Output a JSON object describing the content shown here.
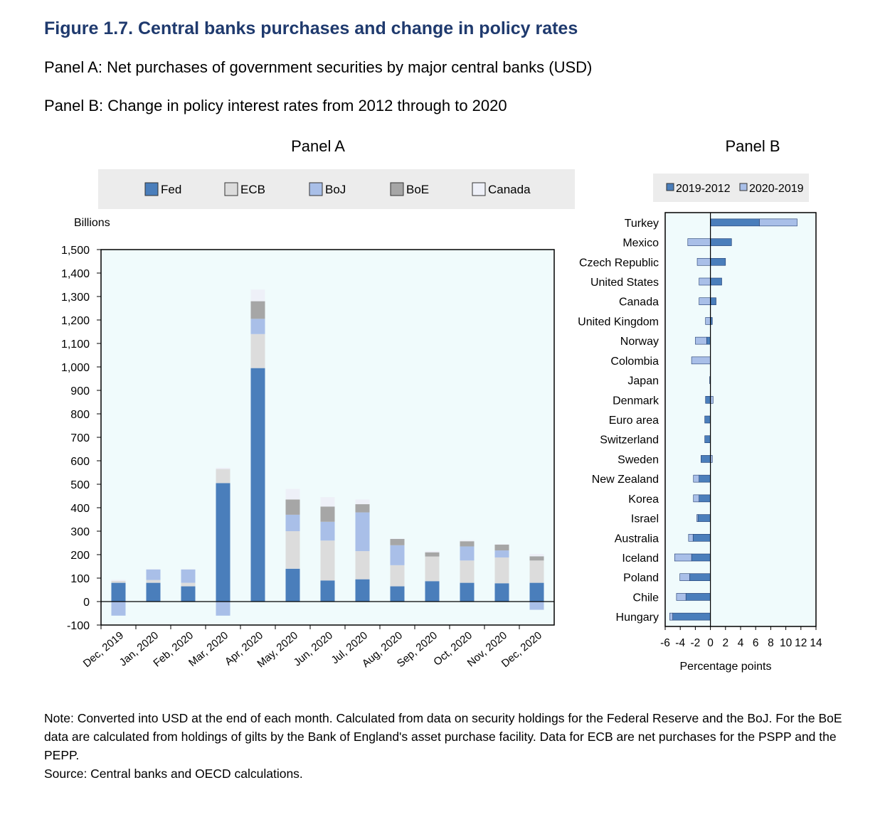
{
  "title": "Figure 1.7. Central banks purchases and change in policy rates",
  "subtitle_a": "Panel A: Net purchases of government securities by major central banks (USD)",
  "subtitle_b": "Panel B: Change in policy interest rates from 2012 through to 2020",
  "note": "Note: Converted into USD at the end of each month. Calculated from data on security holdings for the Federal Reserve and the BoJ. For the BoE data are calculated from holdings of gilts by the Bank of England's asset purchase facility. Data for ECB are net purchases for the PSPP and the PEPP.",
  "source": "Source: Central banks and OECD calculations.",
  "chart_data": [
    {
      "type": "bar",
      "stacked": true,
      "title": "Panel A",
      "xlabel": "",
      "ylabel": "Billions",
      "ylim": [
        -100,
        1500
      ],
      "yticks": [
        -100,
        0,
        100,
        200,
        300,
        400,
        500,
        600,
        700,
        800,
        900,
        1000,
        1100,
        1200,
        1300,
        1400,
        1500
      ],
      "ytick_labels": [
        "-100",
        "0",
        "100",
        "200",
        "300",
        "400",
        "500",
        "600",
        "700",
        "800",
        "900",
        "1,000",
        "1,100",
        "1,200",
        "1,300",
        "1,400",
        "1,500"
      ],
      "grid": false,
      "legend_position": "top",
      "categories": [
        "Dec, 2019",
        "Jan, 2020",
        "Feb, 2020",
        "Mar, 2020",
        "Apr, 2020",
        "May, 2020",
        "Jun, 2020",
        "Jul, 2020",
        "Aug, 2020",
        "Sep, 2020",
        "Oct, 2020",
        "Nov, 2020",
        "Dec, 2020"
      ],
      "series": [
        {
          "name": "Fed",
          "color": "#4a7ebb",
          "values": [
            80,
            80,
            65,
            505,
            995,
            140,
            90,
            95,
            65,
            87,
            80,
            78,
            80
          ]
        },
        {
          "name": "ECB",
          "color": "#dcdcdc",
          "values": [
            8,
            12,
            15,
            60,
            145,
            160,
            170,
            120,
            90,
            105,
            95,
            110,
            95
          ]
        },
        {
          "name": "BoJ",
          "color": "#a9bfe8",
          "values": [
            -60,
            45,
            57,
            -60,
            65,
            70,
            80,
            165,
            85,
            0,
            60,
            30,
            -35
          ]
        },
        {
          "name": "BoE",
          "color": "#a6a6a6",
          "values": [
            0,
            0,
            0,
            0,
            75,
            65,
            65,
            35,
            27,
            18,
            22,
            25,
            18
          ]
        },
        {
          "name": "Canada",
          "color": "#eef0f8",
          "values": [
            5,
            2,
            2,
            5,
            50,
            45,
            40,
            20,
            2,
            5,
            5,
            2,
            10
          ]
        }
      ]
    },
    {
      "type": "bar",
      "orientation": "horizontal",
      "stacked": true,
      "title": "Panel B",
      "xlabel": "Percentage points",
      "ylabel": "",
      "xlim": [
        -6,
        14
      ],
      "xticks": [
        -6,
        -4,
        -2,
        0,
        2,
        4,
        6,
        8,
        10,
        12,
        14
      ],
      "grid": false,
      "legend_position": "top",
      "categories": [
        "Turkey",
        "Mexico",
        "Czech Republic",
        "United States",
        "Canada",
        "United Kingdom",
        "Norway",
        "Colombia",
        "Japan",
        "Denmark",
        "Euro area",
        "Switzerland",
        "Sweden",
        "New Zealand",
        "Korea",
        "Israel",
        "Australia",
        "Iceland",
        "Poland",
        "Chile",
        "Hungary"
      ],
      "series": [
        {
          "name": "2019-2012",
          "color": "#4a7ebb",
          "values": [
            6.5,
            2.8,
            2.0,
            1.5,
            0.75,
            0.25,
            -0.5,
            0.0,
            -0.1,
            -0.65,
            -0.75,
            -0.75,
            -1.25,
            -1.5,
            -1.5,
            -1.65,
            -2.3,
            -2.5,
            -2.75,
            -3.25,
            -5.0
          ]
        },
        {
          "name": "2020-2019",
          "color": "#a9bfe8",
          "values": [
            5.0,
            -3.0,
            -1.75,
            -1.5,
            -1.5,
            -0.65,
            -1.5,
            -2.5,
            0.0,
            0.35,
            0.0,
            0.0,
            0.25,
            -0.75,
            -0.75,
            -0.15,
            -0.6,
            -2.25,
            -1.3,
            -1.25,
            -0.4
          ]
        }
      ]
    }
  ]
}
